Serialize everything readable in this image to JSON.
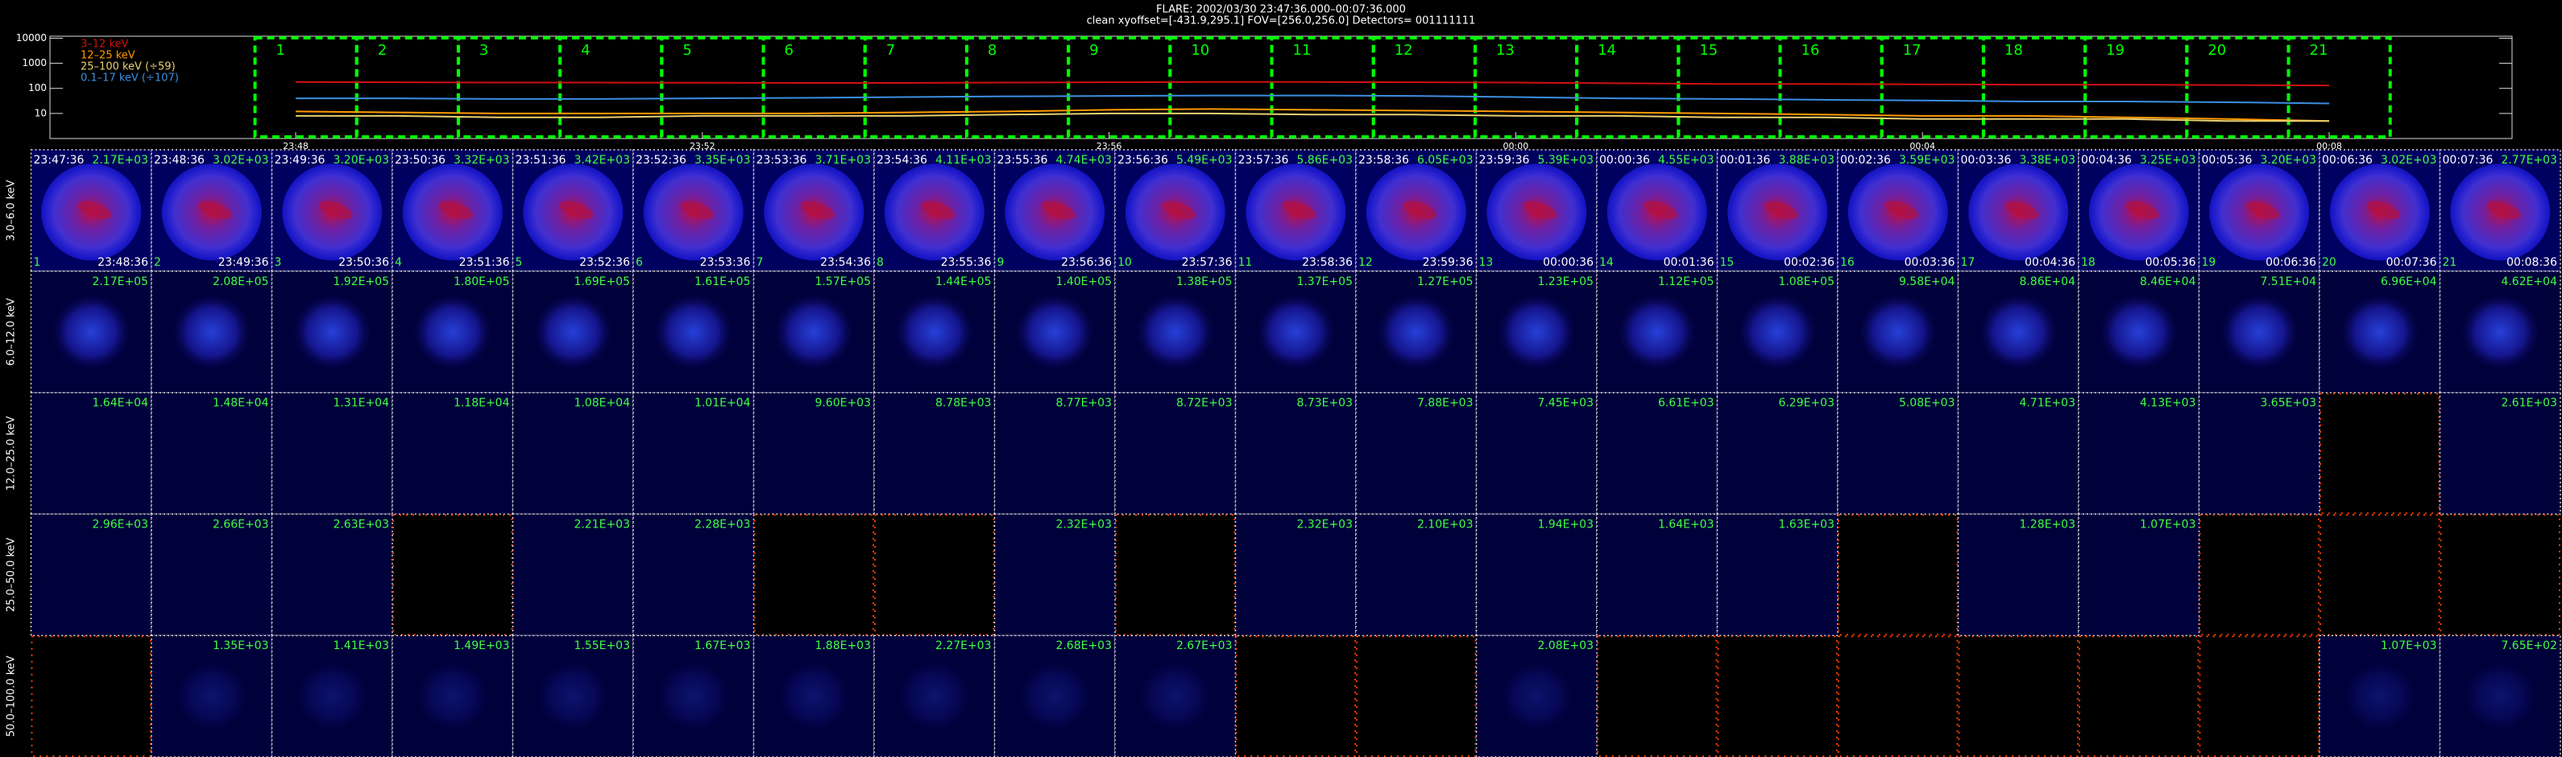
{
  "header": {
    "title": "FLARE: 2002/03/30 23:47:36.000–00:07:36.000",
    "subtitle": "clean    xyoffset=[-431.9,295.1]    FOV=[256.0,256.0]    Detectors= 001111111"
  },
  "chart_data": {
    "type": "line",
    "categories": [
      "23:48",
      null,
      null,
      null,
      "23:52",
      null,
      null,
      null,
      "23:56",
      null,
      null,
      null,
      "00:00",
      null,
      null,
      null,
      "00:04",
      null,
      null,
      null,
      "00:08"
    ],
    "series": [
      {
        "name": "3–12 keV",
        "color": "#d01010",
        "values": [
          180,
          175,
          170,
          170,
          168,
          165,
          165,
          170,
          175,
          180,
          180,
          175,
          170,
          160,
          150,
          150,
          145,
          140,
          140,
          135,
          130
        ]
      },
      {
        "name": "12–25 keV",
        "color": "#ff9a00",
        "values": [
          12,
          11,
          10,
          10,
          10,
          10,
          11,
          12,
          14,
          15,
          14,
          13,
          12,
          11,
          10,
          9,
          8,
          8,
          7,
          6,
          5
        ]
      },
      {
        "name": "25–100 keV (÷59)",
        "color": "#e8d070",
        "values": [
          8,
          8,
          7,
          7,
          8,
          8,
          8,
          9,
          10,
          10,
          9,
          9,
          8,
          8,
          7,
          7,
          6,
          6,
          6,
          5,
          5
        ]
      },
      {
        "name": "0.1–17 keV (÷107)",
        "color": "#3a8fe0",
        "values": [
          40,
          40,
          38,
          38,
          40,
          42,
          45,
          48,
          50,
          52,
          52,
          50,
          45,
          40,
          38,
          35,
          33,
          30,
          30,
          28,
          25
        ]
      }
    ],
    "ylim": [
      1,
      12000
    ],
    "yticks": [
      10,
      100,
      1000,
      10000
    ],
    "log_y": true,
    "intervals": [
      1,
      2,
      3,
      4,
      5,
      6,
      7,
      8,
      9,
      10,
      11,
      12,
      13,
      14,
      15,
      16,
      17,
      18,
      19,
      20,
      21
    ]
  },
  "image_grid": {
    "row_labels": [
      "3.0–6.0 keV",
      "6.0–12.0 keV",
      "12.0–25.0 keV",
      "25.0–50.0 keV",
      "50.0–100.0 keV"
    ],
    "start_times": [
      "23:47:36",
      "23:48:36",
      "23:49:36",
      "23:50:36",
      "23:51:36",
      "23:52:36",
      "23:53:36",
      "23:54:36",
      "23:55:36",
      "23:56:36",
      "23:57:36",
      "23:58:36",
      "23:59:36",
      "00:00:36",
      "00:01:36",
      "00:02:36",
      "00:03:36",
      "00:04:36",
      "00:05:36",
      "00:06:36",
      "00:07:36"
    ],
    "end_times": [
      "23:48:36",
      "23:49:36",
      "23:50:36",
      "23:51:36",
      "23:52:36",
      "23:53:36",
      "23:54:36",
      "23:55:36",
      "23:56:36",
      "23:57:36",
      "23:58:36",
      "23:59:36",
      "00:00:36",
      "00:01:36",
      "00:02:36",
      "00:03:36",
      "00:04:36",
      "00:05:36",
      "00:06:36",
      "00:07:36",
      "00:08:36"
    ],
    "rows": [
      {
        "max_labels": [
          "2.17E+03",
          "3.02E+03",
          "3.20E+03",
          "3.32E+03",
          "3.42E+03",
          "3.35E+03",
          "3.71E+03",
          "4.11E+03",
          "4.74E+03",
          "5.49E+03",
          "5.86E+03",
          "6.05E+03",
          "5.39E+03",
          "4.55E+03",
          "3.88E+03",
          "3.59E+03",
          "3.38E+03",
          "3.25E+03",
          "3.20E+03",
          "3.02E+03",
          "2.77E+03"
        ]
      },
      {
        "max_labels": [
          "2.17E+05",
          "2.08E+05",
          "1.92E+05",
          "1.80E+05",
          "1.69E+05",
          "1.61E+05",
          "1.57E+05",
          "1.44E+05",
          "1.40E+05",
          "1.38E+05",
          "1.37E+05",
          "1.27E+05",
          "1.23E+05",
          "1.12E+05",
          "1.08E+05",
          "9.58E+04",
          "8.86E+04",
          "8.46E+04",
          "7.51E+04",
          "6.96E+04",
          "4.62E+04"
        ]
      },
      {
        "max_labels": [
          "1.64E+04",
          "1.48E+04",
          "1.31E+04",
          "1.18E+04",
          "1.08E+04",
          "1.01E+04",
          "9.60E+03",
          "8.78E+03",
          "8.77E+03",
          "8.72E+03",
          "8.73E+03",
          "7.88E+03",
          "7.45E+03",
          "6.61E+03",
          "6.29E+03",
          "5.08E+03",
          "4.71E+03",
          "4.13E+03",
          "3.65E+03",
          null,
          "2.61E+03"
        ]
      },
      {
        "max_labels": [
          "2.96E+03",
          "2.66E+03",
          "2.63E+03",
          null,
          "2.21E+03",
          "2.28E+03",
          null,
          null,
          "2.32E+03",
          null,
          "2.32E+03",
          "2.10E+03",
          "1.94E+03",
          "1.64E+03",
          "1.63E+03",
          null,
          "1.28E+03",
          "1.07E+03",
          null,
          null,
          null
        ]
      },
      {
        "max_labels": [
          null,
          "1.35E+03",
          "1.41E+03",
          "1.49E+03",
          "1.55E+03",
          "1.67E+03",
          "1.88E+03",
          "2.27E+03",
          "2.68E+03",
          "2.67E+03",
          null,
          null,
          "2.08E+03",
          null,
          null,
          null,
          null,
          null,
          null,
          "1.07E+03",
          "7.65E+02"
        ]
      }
    ]
  }
}
